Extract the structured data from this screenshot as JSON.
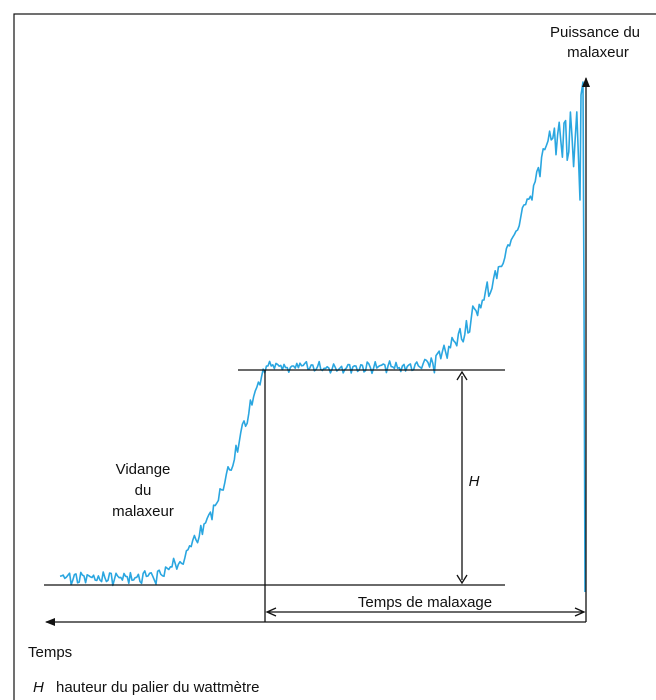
{
  "labels": {
    "y_axis": [
      "Puissance du",
      "malaxeur"
    ],
    "phase": [
      "Vidange",
      "du",
      "malaxeur"
    ],
    "height": "H",
    "mixing_time": "Temps de malaxage",
    "x_axis": "Temps"
  },
  "legend": {
    "symbol": "H",
    "text": "hauteur du palier du wattmètre"
  }
}
